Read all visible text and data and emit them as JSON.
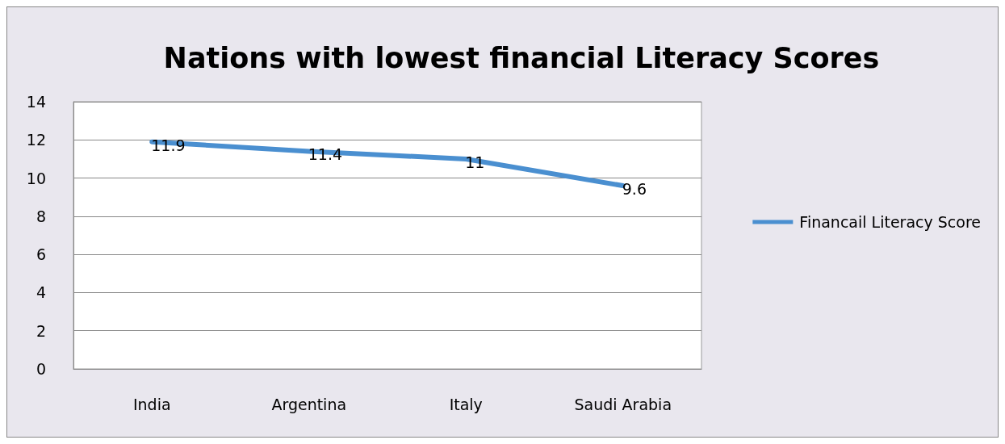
{
  "chart_data": {
    "type": "line",
    "title": "Nations with lowest financial Literacy Scores",
    "categories": [
      "India",
      "Argentina",
      "Italy",
      "Saudi Arabia"
    ],
    "series": [
      {
        "name": "Financail Literacy Score",
        "color": "#4a8fd0",
        "values": [
          11.9,
          11.4,
          11,
          9.6
        ]
      }
    ],
    "ylim": [
      0,
      14
    ],
    "yticks": [
      0,
      2,
      4,
      6,
      8,
      10,
      12,
      14
    ],
    "grid": "y",
    "legend": "right",
    "data_labels": true,
    "marker": "none"
  }
}
